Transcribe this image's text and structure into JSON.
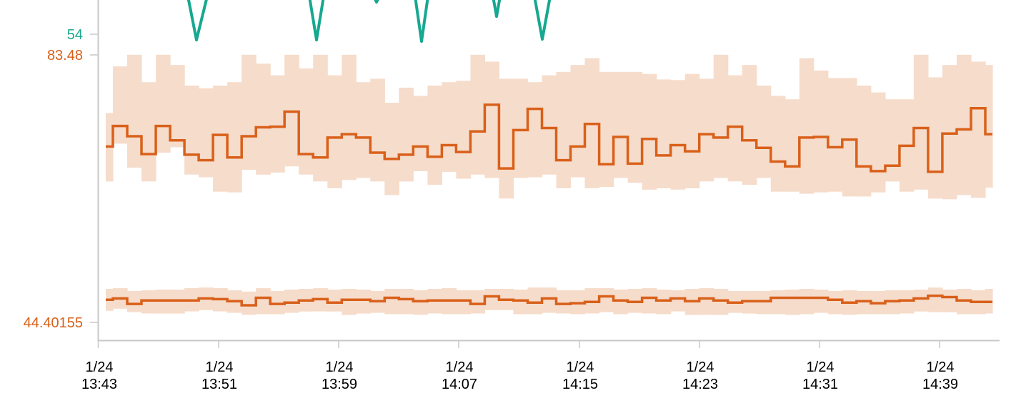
{
  "chart_data": {
    "type": "line",
    "x_ticks": [
      {
        "date": "1/24",
        "time": "13:43"
      },
      {
        "date": "1/24",
        "time": "13:51"
      },
      {
        "date": "1/24",
        "time": "13:59"
      },
      {
        "date": "1/24",
        "time": "14:07"
      },
      {
        "date": "1/24",
        "time": "14:15"
      },
      {
        "date": "1/24",
        "time": "14:23"
      },
      {
        "date": "1/24",
        "time": "14:31"
      },
      {
        "date": "1/24",
        "time": "14:39"
      }
    ],
    "y_left_labels": [
      {
        "text": "54",
        "color": "#1aa88e"
      },
      {
        "text": "83.48",
        "color": "#d9601a"
      },
      {
        "text": "44.40155",
        "color": "#d9601a"
      }
    ],
    "colors": {
      "teal": "#16a890",
      "orange": "#d9601a",
      "band": "#f6dccb",
      "axis": "#c8c8c8"
    },
    "orange_ylim": [
      44.40155,
      83.48
    ],
    "series": [
      {
        "color": "orange",
        "step": true,
        "values": [
          70.1,
          73.1,
          71.6,
          69.0,
          73.1,
          71.0,
          68.9,
          68.1,
          71.8,
          68.5,
          71.6,
          72.9,
          73.0,
          75.2,
          69.0,
          68.5,
          71.4,
          71.9,
          71.4,
          69.2,
          68.3,
          68.9,
          70.1,
          68.6,
          70.3,
          69.3,
          72.3,
          76.2,
          66.9,
          72.5,
          75.6,
          72.8,
          68.1,
          70.1,
          73.4,
          67.5,
          71.5,
          67.6,
          71.2,
          68.8,
          70.3,
          69.4,
          71.9,
          71.4,
          73.0,
          71.0,
          69.9,
          67.9,
          67.2,
          71.4,
          71.5,
          70.0,
          71.1,
          67.2,
          66.5,
          67.3,
          70.2,
          72.8,
          66.4,
          72.0,
          72.6,
          75.7,
          71.9
        ]
      },
      {
        "color": "orange",
        "step": true,
        "values": [
          47.7,
          47.9,
          47.1,
          47.6,
          47.6,
          47.6,
          47.6,
          47.9,
          47.8,
          47.5,
          46.9,
          48.0,
          47.1,
          47.3,
          47.6,
          47.8,
          47.3,
          47.7,
          47.7,
          47.5,
          48.0,
          47.8,
          47.5,
          47.6,
          47.6,
          47.6,
          47.1,
          48.2,
          47.7,
          47.6,
          47.3,
          47.9,
          47.1,
          47.2,
          47.4,
          48.2,
          47.6,
          47.4,
          48.0,
          47.6,
          47.9,
          47.5,
          47.9,
          47.6,
          47.3,
          47.5,
          47.5,
          48.0,
          48.0,
          48.0,
          48.0,
          47.7,
          47.3,
          47.5,
          47.2,
          47.5,
          47.6,
          47.9,
          48.3,
          48.1,
          47.6,
          47.4,
          47.4
        ]
      }
    ],
    "bands": [
      {
        "lower": [
          65.0,
          70.5,
          67.0,
          65.0,
          69.2,
          70.0,
          66.0,
          65.6,
          63.5,
          63.4,
          66.7,
          66.0,
          66.3,
          67.2,
          66.0,
          65.0,
          64.0,
          65.2,
          65.5,
          65.0,
          63.0,
          65.0,
          66.5,
          64.5,
          66.4,
          65.4,
          66.0,
          65.5,
          62.5,
          65.5,
          65.6,
          66.0,
          64.0,
          65.6,
          64.0,
          64.2,
          65.5,
          64.8,
          63.8,
          64.0,
          63.8,
          64.0,
          65.0,
          65.5,
          65.0,
          64.5,
          65.5,
          63.5,
          63.5,
          63.2,
          63.4,
          63.5,
          62.8,
          62.8,
          63.4,
          65.0,
          63.5,
          63.8,
          62.5,
          62.4,
          63.0,
          62.6,
          64.1
        ],
        "upper": [
          75.0,
          81.8,
          83.5,
          79.5,
          83.5,
          82.0,
          79.0,
          78.6,
          79.0,
          79.5,
          83.5,
          82.2,
          80.5,
          83.5,
          81.5,
          83.5,
          80.5,
          83.5,
          79.5,
          80.0,
          76.5,
          78.7,
          77.5,
          79.0,
          79.5,
          79.7,
          83.5,
          82.5,
          80.0,
          80.0,
          79.5,
          80.5,
          81.0,
          82.0,
          83.0,
          81.0,
          81.0,
          81.0,
          80.7,
          79.9,
          79.8,
          80.7,
          80.0,
          83.5,
          80.5,
          82.0,
          79.0,
          77.5,
          77.0,
          83.0,
          81.2,
          80.1,
          80.1,
          79.0,
          78.0,
          77.0,
          77.0,
          83.5,
          80.2,
          82.0,
          83.5,
          82.5,
          82.0
        ]
      },
      {
        "lower": [
          46.1,
          46.4,
          45.9,
          45.7,
          45.7,
          45.7,
          46.0,
          46.2,
          46.0,
          45.8,
          45.5,
          45.6,
          45.6,
          45.8,
          46.0,
          46.0,
          46.0,
          45.5,
          45.7,
          45.8,
          45.6,
          45.6,
          45.5,
          45.7,
          45.6,
          45.6,
          45.7,
          46.2,
          46.2,
          45.6,
          45.6,
          45.8,
          45.7,
          45.6,
          45.7,
          45.9,
          45.6,
          45.8,
          45.7,
          45.6,
          46.0,
          45.5,
          45.5,
          45.5,
          45.8,
          45.7,
          45.6,
          45.6,
          45.5,
          45.6,
          45.8,
          45.6,
          45.5,
          45.6,
          45.6,
          45.6,
          45.7,
          46.0,
          45.9,
          45.9,
          45.6,
          45.6,
          45.7
        ],
        "upper": [
          49.3,
          49.4,
          49.0,
          49.1,
          49.2,
          49.2,
          49.4,
          49.5,
          49.4,
          49.1,
          48.9,
          49.4,
          49.0,
          49.2,
          49.3,
          49.4,
          49.2,
          49.3,
          49.2,
          49.0,
          49.3,
          49.3,
          49.1,
          49.3,
          49.4,
          49.1,
          49.1,
          49.3,
          49.3,
          49.2,
          49.5,
          49.5,
          49.1,
          49.1,
          49.4,
          49.4,
          49.2,
          49.3,
          49.4,
          49.2,
          49.1,
          49.3,
          49.4,
          49.3,
          49.0,
          49.0,
          49.0,
          49.1,
          49.2,
          49.3,
          49.2,
          49.0,
          49.1,
          49.0,
          49.0,
          49.1,
          49.1,
          49.2,
          49.5,
          49.2,
          49.3,
          49.1,
          49.3
        ]
      }
    ]
  }
}
